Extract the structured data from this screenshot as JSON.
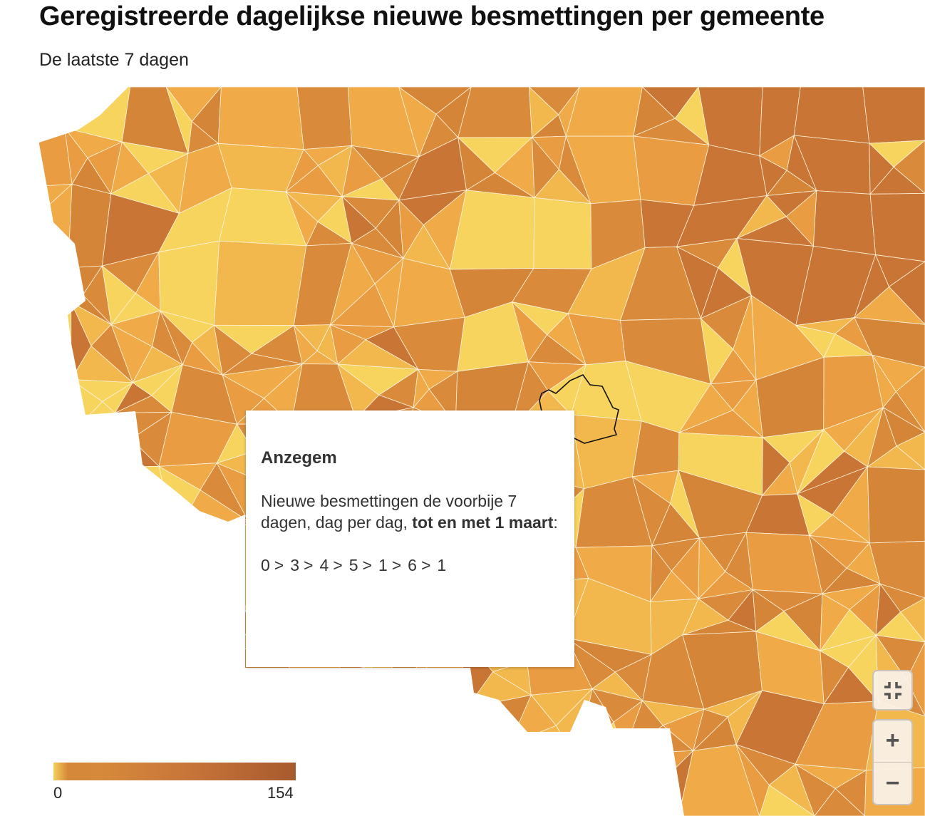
{
  "header": {
    "title": "Geregistreerde dagelijkse nieuwe besmettingen per gemeente",
    "subtitle": "De laatste 7 dagen"
  },
  "map": {
    "highlighted_municipality": "Anzegem",
    "palette": [
      "#f6d45e",
      "#f2b84e",
      "#f0aa48",
      "#e99c42",
      "#d98a3a",
      "#d48538",
      "#c87535"
    ]
  },
  "tooltip": {
    "name": "Anzegem",
    "text_before": "Nieuwe besmettingen de voorbije 7 dagen, dag per dag, ",
    "text_bold": "tot en met 1 maart",
    "text_after": ":",
    "daily_values": [
      "0",
      "3",
      "4",
      "5",
      "1",
      "6",
      "1"
    ],
    "separator": ">"
  },
  "controls": {
    "fullscreen_icon": "collapse-icon",
    "zoom_in": "+",
    "zoom_out": "−"
  },
  "legend": {
    "min": "0",
    "max": "154",
    "color_min": "#f5cf5b",
    "color_max": "#a85a2d"
  }
}
